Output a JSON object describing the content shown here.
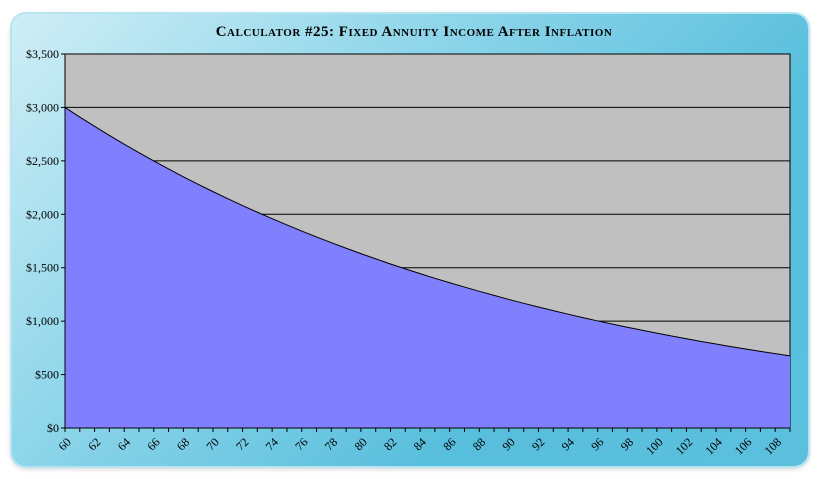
{
  "chart_data": {
    "type": "area",
    "title": "Calculator #25: Fixed Annuity Income After Inflation",
    "xlabel": "",
    "ylabel": "",
    "x": [
      60,
      61,
      62,
      63,
      64,
      65,
      66,
      67,
      68,
      69,
      70,
      71,
      72,
      73,
      74,
      75,
      76,
      77,
      78,
      79,
      80,
      81,
      82,
      83,
      84,
      85,
      86,
      87,
      88,
      89,
      90,
      91,
      92,
      93,
      94,
      95,
      96,
      97,
      98,
      99,
      100,
      101,
      102,
      103,
      104,
      105,
      106,
      107,
      108,
      109
    ],
    "series": [
      {
        "values": [
          3000,
          2910,
          2823,
          2738,
          2656,
          2576,
          2499,
          2424,
          2351,
          2281,
          2212,
          2146,
          2082,
          2019,
          1959,
          1900,
          1843,
          1788,
          1734,
          1682,
          1632,
          1583,
          1535,
          1489,
          1445,
          1401,
          1359,
          1319,
          1279,
          1241,
          1203,
          1167,
          1132,
          1098,
          1065,
          1033,
          1002,
          972,
          943,
          915,
          888,
          861,
          835,
          810,
          786,
          762,
          739,
          717,
          696,
          675
        ]
      }
    ],
    "x_tick_labels": [
      "60",
      "62",
      "64",
      "66",
      "68",
      "70",
      "72",
      "74",
      "76",
      "78",
      "80",
      "82",
      "84",
      "86",
      "88",
      "90",
      "92",
      "94",
      "96",
      "98",
      "100",
      "102",
      "104",
      "106",
      "108"
    ],
    "y_tick_labels": [
      "$0",
      "$500",
      "$1,000",
      "$1,500",
      "$2,000",
      "$2,500",
      "$3,000",
      "$3,500"
    ],
    "ylim": [
      0,
      3500
    ],
    "xlim": [
      60,
      109
    ],
    "grid": true,
    "colors": {
      "fill": "#8080ff",
      "plot_background": "#c0c0c0",
      "line": "#000000",
      "gridline": "#000000"
    }
  }
}
